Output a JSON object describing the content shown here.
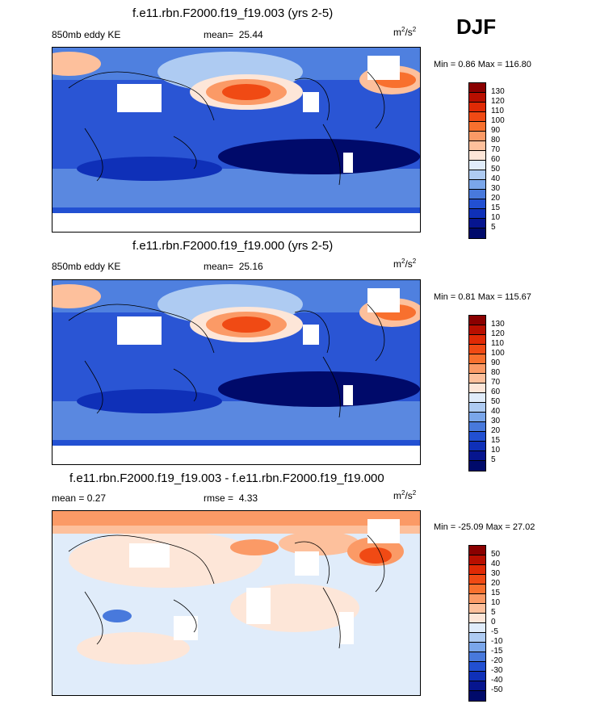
{
  "season": "DJF",
  "units_base": "m",
  "units_sup1": "2",
  "units_mid": "/s",
  "units_sup2": "2",
  "panels": [
    {
      "title": "f.e11.rbn.F2000.f19_f19.003 (yrs 2-5)",
      "left_label": "850mb eddy KE",
      "mean_label": "mean=",
      "mean_value": "25.44",
      "minmax": "Min =   0.86 Max = 116.80",
      "levels": [
        "130",
        "120",
        "110",
        "100",
        "90",
        "80",
        "70",
        "60",
        "50",
        "40",
        "30",
        "20",
        "15",
        "10",
        "5"
      ],
      "colors": [
        "#8a0000",
        "#b80f00",
        "#e02a05",
        "#f04a14",
        "#f8702e",
        "#fb9a66",
        "#fdc09c",
        "#fde6d8",
        "#e0ecfa",
        "#aecbf2",
        "#7aa6ea",
        "#4879dc",
        "#2250d2",
        "#0f30b8",
        "#06158f",
        "#000a6a"
      ]
    },
    {
      "title": "f.e11.rbn.F2000.f19_f19.000 (yrs 2-5)",
      "left_label": "850mb eddy KE",
      "mean_label": "mean=",
      "mean_value": "25.16",
      "minmax": "Min =   0.81 Max = 115.67",
      "levels": [
        "130",
        "120",
        "110",
        "100",
        "90",
        "80",
        "70",
        "60",
        "50",
        "40",
        "30",
        "20",
        "15",
        "10",
        "5"
      ],
      "colors": [
        "#8a0000",
        "#b80f00",
        "#e02a05",
        "#f04a14",
        "#f8702e",
        "#fb9a66",
        "#fdc09c",
        "#fde6d8",
        "#e0ecfa",
        "#aecbf2",
        "#7aa6ea",
        "#4879dc",
        "#2250d2",
        "#0f30b8",
        "#06158f",
        "#000a6a"
      ]
    },
    {
      "title": "f.e11.rbn.F2000.f19_f19.003 - f.e11.rbn.F2000.f19_f19.000",
      "left_label": "mean =   0.27",
      "mean_label": "rmse =",
      "mean_value": "4.33",
      "minmax": "Min = -25.09 Max =  27.02",
      "levels": [
        "50",
        "40",
        "30",
        "20",
        "15",
        "10",
        "5",
        "0",
        "-5",
        "-10",
        "-15",
        "-20",
        "-30",
        "-40",
        "-50"
      ],
      "colors": [
        "#8a0000",
        "#b80f00",
        "#e02a05",
        "#f04a14",
        "#f8702e",
        "#fb9a66",
        "#fdc09c",
        "#fde6d8",
        "#e0ecfa",
        "#aecbf2",
        "#7aa6ea",
        "#4879dc",
        "#2250d2",
        "#0f30b8",
        "#06158f",
        "#000a6a"
      ]
    }
  ]
}
